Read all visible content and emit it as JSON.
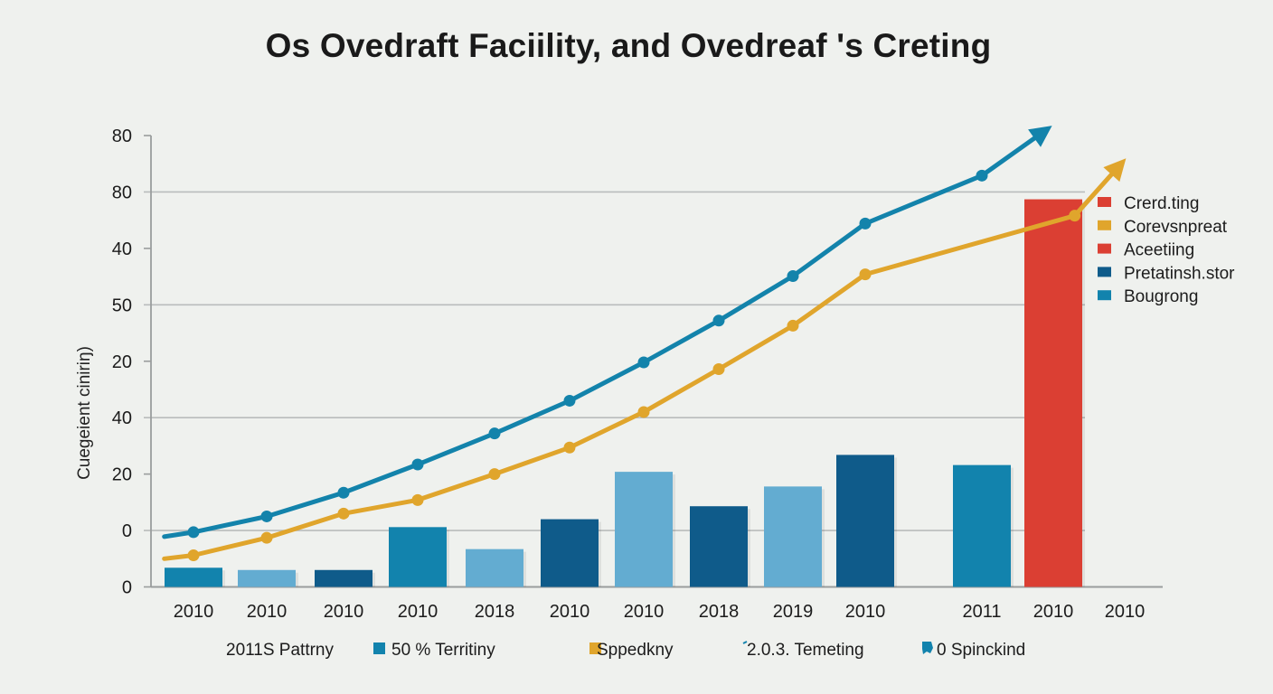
{
  "chart_data": {
    "type": "bar",
    "title": "Os Ovedraft Faciility, and Ovedreaf 's Creting",
    "xlabel": "",
    "ylabel": "Cuegeient ciniriŋ)",
    "y_tick_labels": [
      "0",
      "0",
      "20",
      "40",
      "20",
      "50",
      "40",
      "80",
      "80"
    ],
    "y_axis_note": "Values expressed in tick-index units (0 = baseline tick, 8 = top tick) because tick labels are non-monotonic",
    "ylim": [
      0,
      8
    ],
    "grid": true,
    "categories": [
      "2010",
      "2010",
      "2010",
      "2010",
      "2018",
      "2010",
      "2010",
      "2018",
      "2019",
      "2010",
      "2011",
      "2010",
      "2010"
    ],
    "bars": [
      {
        "category_index": 0,
        "value": 0.34,
        "color": "#1283ad"
      },
      {
        "category_index": 1,
        "value": 0.3,
        "color": "#63acd1"
      },
      {
        "category_index": 2,
        "value": 0.3,
        "color": "#0f5b8a"
      },
      {
        "category_index": 3,
        "value": 1.06,
        "color": "#1283ad"
      },
      {
        "category_index": 4,
        "value": 0.67,
        "color": "#63acd1"
      },
      {
        "category_index": 5,
        "value": 1.2,
        "color": "#0f5b8a"
      },
      {
        "category_index": 6,
        "value": 2.04,
        "color": "#63acd1"
      },
      {
        "category_index": 7,
        "value": 1.43,
        "color": "#0f5b8a"
      },
      {
        "category_index": 8,
        "value": 1.78,
        "color": "#63acd1"
      },
      {
        "category_index": 9,
        "value": 2.34,
        "color": "#0f5b8a"
      },
      {
        "category_index": 10,
        "value": 2.16,
        "color": "#1283ad"
      },
      {
        "category_index": 11,
        "value": 6.87,
        "color": "#db3f33"
      }
    ],
    "series": [
      {
        "name": "blue trend",
        "type": "line",
        "color": "#1383ab",
        "arrow": true,
        "start": {
          "x": -0.4,
          "y": 0.89
        },
        "values": [
          {
            "x": 0,
            "y": 0.97
          },
          {
            "x": 1,
            "y": 1.25
          },
          {
            "x": 2,
            "y": 1.67
          },
          {
            "x": 3,
            "y": 2.17
          },
          {
            "x": 4,
            "y": 2.72
          },
          {
            "x": 5,
            "y": 3.3
          },
          {
            "x": 6,
            "y": 3.98
          },
          {
            "x": 7,
            "y": 4.72
          },
          {
            "x": 8,
            "y": 5.51
          },
          {
            "x": 9,
            "y": 6.44
          },
          {
            "x": 10,
            "y": 7.29
          }
        ],
        "end": {
          "x": 10.9,
          "y": 8.1
        }
      },
      {
        "name": "yellow trend",
        "type": "line",
        "color": "#e0a52c",
        "arrow": true,
        "start": {
          "x": -0.4,
          "y": 0.5
        },
        "values": [
          {
            "x": 0,
            "y": 0.56
          },
          {
            "x": 1,
            "y": 0.87
          },
          {
            "x": 2,
            "y": 1.3
          },
          {
            "x": 3,
            "y": 1.54
          },
          {
            "x": 4,
            "y": 2.0
          },
          {
            "x": 5,
            "y": 2.47
          },
          {
            "x": 6,
            "y": 3.1
          },
          {
            "x": 7,
            "y": 3.86
          },
          {
            "x": 8,
            "y": 4.63
          },
          {
            "x": 9,
            "y": 5.54
          },
          {
            "x": 11.3,
            "y": 6.58
          }
        ],
        "end": {
          "x": 11.95,
          "y": 7.5
        }
      }
    ],
    "legend_right": {
      "placement": "right",
      "items": [
        {
          "label": "Crerd.ting",
          "color": "#db3f33"
        },
        {
          "label": "Corevsnpreat",
          "color": "#e0a52c"
        },
        {
          "label": "Aceetiing",
          "color": "#db3f33"
        },
        {
          "label": "Pretatinsh.stor",
          "color": "#0f5b8a"
        },
        {
          "label": "Bougrong",
          "color": "#1283ad"
        }
      ]
    },
    "legend_bottom": {
      "placement": "bottom",
      "items": [
        {
          "label": "2011S Pattrny",
          "marker": "none",
          "color": ""
        },
        {
          "label": "50 %  Territiny",
          "marker": "square",
          "color": "#1283ad"
        },
        {
          "label": "Sppedkny",
          "marker": "square",
          "color": "#e0a52c"
        },
        {
          "label": "2.0.3.  Temeting",
          "marker": "tick",
          "color": "#1283ad"
        },
        {
          "label": "0 Spinckind",
          "marker": "blob",
          "color": "#1283ad"
        }
      ]
    }
  }
}
